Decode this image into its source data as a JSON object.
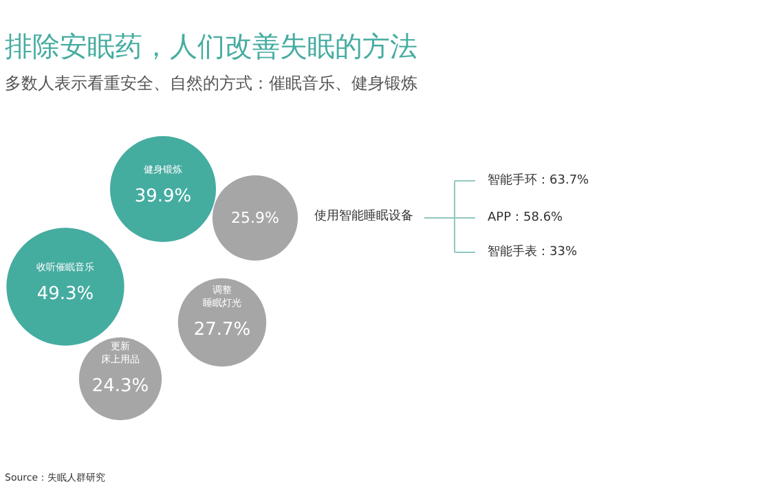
{
  "chart_data": {
    "type": "other",
    "title": "排除安眠药，人们改善失眠的方法",
    "subtitle": "多数人表示看重安全、自然的方式：催眠音乐、健身锻炼",
    "categories": [
      "健身锻炼",
      "使用智能睡眠设备",
      "收听催眠音乐",
      "调整睡眠灯光",
      "更新床上用品"
    ],
    "values": [
      39.9,
      25.9,
      49.3,
      27.7,
      24.3
    ],
    "value_labels": [
      "39.9%",
      "25.9%",
      "49.3%",
      "27.7%",
      "24.3%"
    ],
    "colors": [
      "#45aca0",
      "#a6a6a6",
      "#45aca0",
      "#a6a6a6",
      "#a6a6a6"
    ],
    "annotations": [
      "智能手环：63.7%",
      "APP：58.6%",
      "智能手表：33%",
      "Source：失眠人群研究"
    ]
  }
}
